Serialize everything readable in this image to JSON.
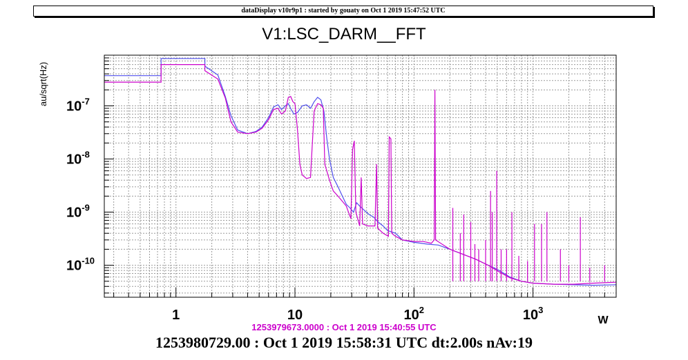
{
  "banner": "dataDisplay v10r9p1 : started by gouaty on Oct  1 2019 15:47:52 UTC",
  "chart_data": {
    "type": "line",
    "title": "V1:LSC_DARM__FFT",
    "xlabel": "",
    "ylabel": "au/sqrt(Hz)",
    "x_scale": "log",
    "y_scale": "log",
    "xlim": [
      0.25,
      5000
    ],
    "ylim": [
      2.5e-11,
      9e-07
    ],
    "grid": true,
    "x_ticks": [
      {
        "value": 1,
        "base": "1",
        "exp": ""
      },
      {
        "value": 10,
        "base": "10",
        "exp": ""
      },
      {
        "value": 100,
        "base": "10",
        "exp": "2"
      },
      {
        "value": 1000,
        "base": "10",
        "exp": "3"
      }
    ],
    "y_ticks": [
      {
        "value": 1e-10,
        "base": "10",
        "exp": "-10"
      },
      {
        "value": 1e-09,
        "base": "10",
        "exp": "-9"
      },
      {
        "value": 1e-08,
        "base": "10",
        "exp": "-8"
      },
      {
        "value": 1e-07,
        "base": "10",
        "exp": "-7"
      }
    ],
    "x_axis_unit_glyph": "W",
    "reference_time": "1253979673.0000 : Oct  1 2019 15:40:55 UTC",
    "series": [
      {
        "color": "#5050ee",
        "points": [
          [
            0.25,
            3.7e-07
          ],
          [
            0.75,
            3.7e-07
          ],
          [
            0.75,
            7.8e-07
          ],
          [
            1.75,
            7.8e-07
          ],
          [
            1.75,
            5.6e-07
          ],
          [
            2.25,
            3.8e-07
          ],
          [
            2.6,
            1.5e-07
          ],
          [
            2.9,
            6.5e-08
          ],
          [
            3.3,
            3.5e-08
          ],
          [
            4.0,
            3e-08
          ],
          [
            4.7,
            3.3e-08
          ],
          [
            5.3,
            4e-08
          ],
          [
            6.0,
            6e-08
          ],
          [
            6.6,
            9.5e-08
          ],
          [
            7.2,
            1.05e-07
          ],
          [
            7.7,
            8.5e-08
          ],
          [
            8.3,
            1e-07
          ],
          [
            8.8,
            1.1e-07
          ],
          [
            9.3,
            8.5e-08
          ],
          [
            9.8,
            7e-08
          ],
          [
            10.5,
            7.5e-08
          ],
          [
            11.5,
            1e-07
          ],
          [
            12.5,
            1.05e-07
          ],
          [
            13.5,
            9e-08
          ],
          [
            14.5,
            1.2e-07
          ],
          [
            15.5,
            1.45e-07
          ],
          [
            16.5,
            1.3e-07
          ],
          [
            17.5,
            8e-08
          ],
          [
            18.5,
            2.5e-08
          ],
          [
            19.5,
            1e-08
          ],
          [
            21,
            4.5e-09
          ],
          [
            23,
            3e-09
          ],
          [
            25,
            2e-09
          ],
          [
            27,
            1.4e-09
          ],
          [
            29,
            1.2e-09
          ],
          [
            31,
            1e-09
          ],
          [
            33,
            1.5e-09
          ],
          [
            35,
            1.3e-09
          ],
          [
            38,
            1.1e-09
          ],
          [
            42,
            9e-10
          ],
          [
            46,
            8e-10
          ],
          [
            50,
            6.5e-10
          ],
          [
            55,
            5.5e-10
          ],
          [
            60,
            4.5e-10
          ],
          [
            70,
            4e-10
          ],
          [
            80,
            3e-10
          ],
          [
            100,
            2.7e-10
          ],
          [
            130,
            2.5e-10
          ],
          [
            160,
            2.4e-10
          ],
          [
            200,
            2e-10
          ],
          [
            260,
            1.6e-10
          ],
          [
            330,
            1.3e-10
          ],
          [
            420,
            1e-10
          ],
          [
            520,
            8e-11
          ],
          [
            640,
            6e-11
          ],
          [
            800,
            5e-11
          ],
          [
            1000,
            4.6e-11
          ],
          [
            1500,
            4.4e-11
          ],
          [
            2200,
            4.3e-11
          ],
          [
            3200,
            4.2e-11
          ],
          [
            5000,
            4.3e-11
          ]
        ]
      },
      {
        "color": "#cc00cc",
        "points": [
          [
            0.25,
            2.8e-07
          ],
          [
            0.75,
            2.8e-07
          ],
          [
            0.75,
            6e-07
          ],
          [
            1.75,
            6e-07
          ],
          [
            1.75,
            4.6e-07
          ],
          [
            2.25,
            3.2e-07
          ],
          [
            2.6,
            1.4e-07
          ],
          [
            2.9,
            5e-08
          ],
          [
            3.3,
            3.2e-08
          ],
          [
            4.0,
            3e-08
          ],
          [
            4.7,
            3.2e-08
          ],
          [
            5.3,
            3.8e-08
          ],
          [
            6.0,
            5.5e-08
          ],
          [
            6.6,
            8.5e-08
          ],
          [
            7.2,
            9e-08
          ],
          [
            7.7,
            7e-08
          ],
          [
            8.3,
            8e-08
          ],
          [
            8.8,
            1.45e-07
          ],
          [
            9.2,
            1.5e-07
          ],
          [
            9.6,
            1.2e-07
          ],
          [
            10,
            1.1e-07
          ],
          [
            10.5,
            3.5e-08
          ],
          [
            11,
            8e-09
          ],
          [
            11.5,
            5e-09
          ],
          [
            12.5,
            4.3e-09
          ],
          [
            13.5,
            4.5e-09
          ],
          [
            14.0,
            2e-08
          ],
          [
            14.5,
            8e-08
          ],
          [
            15.5,
            1.1e-07
          ],
          [
            16.5,
            1.05e-07
          ],
          [
            17.3,
            9e-08
          ],
          [
            17.8,
            8e-09
          ],
          [
            18.5,
            6e-09
          ],
          [
            19.5,
            4e-09
          ],
          [
            21,
            2.5e-09
          ],
          [
            23,
            2e-09
          ],
          [
            25,
            1.6e-09
          ],
          [
            27,
            1.3e-09
          ],
          [
            29.5,
            7.5e-10
          ],
          [
            30.5,
            1.5e-08
          ],
          [
            31.5,
            2.2e-08
          ],
          [
            32.5,
            1e-09
          ],
          [
            35,
            5.5e-10
          ],
          [
            36,
            4.5e-09
          ],
          [
            37,
            6e-10
          ],
          [
            41,
            5.5e-10
          ],
          [
            47,
            5.5e-10
          ],
          [
            48.5,
            8e-09
          ],
          [
            49.5,
            5e-10
          ],
          [
            55,
            4e-10
          ],
          [
            61,
            3.5e-10
          ],
          [
            62,
            2.6e-08
          ],
          [
            64,
            2.4e-08
          ],
          [
            65,
            4e-10
          ],
          [
            70,
            3.5e-10
          ],
          [
            80,
            3e-10
          ],
          [
            100,
            2.8e-10
          ],
          [
            120,
            2.8e-10
          ],
          [
            140,
            2.6e-10
          ],
          [
            148,
            3e-10
          ],
          [
            150,
            2e-07
          ],
          [
            152,
            3e-10
          ],
          [
            200,
            2e-10
          ],
          [
            260,
            1.6e-10
          ],
          [
            330,
            1.3e-10
          ],
          [
            420,
            1e-10
          ],
          [
            520,
            7.5e-11
          ],
          [
            640,
            5.8e-11
          ],
          [
            800,
            5e-11
          ],
          [
            1000,
            4.6e-11
          ],
          [
            1500,
            4.4e-11
          ],
          [
            2200,
            4.4e-11
          ],
          [
            3200,
            4.6e-11
          ],
          [
            5000,
            4.8e-11
          ]
        ],
        "lines": [
          [
            212,
            1.2e-09
          ],
          [
            245,
            4e-10
          ],
          [
            262,
            9e-10
          ],
          [
            300,
            6.5e-10
          ],
          [
            325,
            2.5e-10
          ],
          [
            350,
            2e-10
          ],
          [
            400,
            3e-10
          ],
          [
            440,
            2.5e-09
          ],
          [
            455,
            1e-09
          ],
          [
            496,
            6e-09
          ],
          [
            540,
            2e-10
          ],
          [
            600,
            2e-10
          ],
          [
            665,
            1e-09
          ],
          [
            760,
            1.5e-10
          ],
          [
            900,
            1.2e-10
          ],
          [
            1030,
            6e-10
          ],
          [
            1180,
            6e-10
          ],
          [
            1310,
            1e-09
          ],
          [
            1700,
            2e-10
          ],
          [
            2000,
            1e-10
          ],
          [
            2500,
            8e-10
          ],
          [
            3000,
            9e-11
          ],
          [
            4000,
            1e-10
          ]
        ]
      }
    ]
  }
}
